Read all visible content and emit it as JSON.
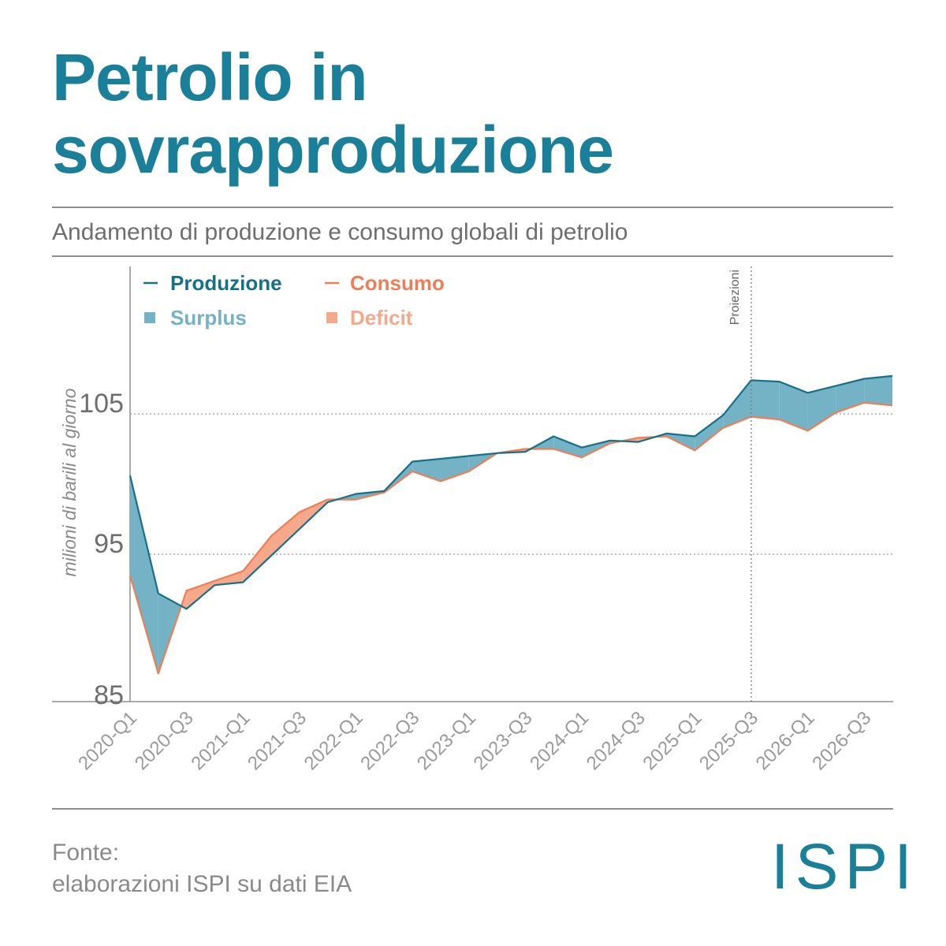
{
  "title_line1": "Petrolio in",
  "title_line2": "sovrapproduzione",
  "subtitle": "Andamento di produzione e consumo globali di petrolio",
  "source_line1": "Fonte:",
  "source_line2": "elaborazioni ISPI su dati EIA",
  "logo": "ISPI",
  "colors": {
    "title": "#1a7f99",
    "production": "#16708a",
    "consumption": "#ee7e55",
    "surplus": "#74b2c6",
    "deficit": "#f6a98a"
  },
  "chart_data": {
    "type": "area",
    "title": "",
    "ylabel": "milioni di barili al giorno",
    "ylim": [
      85,
      106.5
    ],
    "yticks": [
      "85",
      "95",
      "105"
    ],
    "x": [
      "2020-Q1",
      "2020-Q2",
      "2020-Q3",
      "2020-Q4",
      "2021-Q1",
      "2021-Q2",
      "2021-Q3",
      "2021-Q4",
      "2022-Q1",
      "2022-Q2",
      "2022-Q3",
      "2022-Q4",
      "2023-Q1",
      "2023-Q2",
      "2023-Q3",
      "2023-Q4",
      "2024-Q1",
      "2024-Q2",
      "2024-Q3",
      "2024-Q4",
      "2025-Q1",
      "2025-Q2",
      "2025-Q3",
      "2025-Q4",
      "2026-Q1",
      "2026-Q2",
      "2026-Q3",
      "2026-Q4"
    ],
    "tick_labels": [
      "2020-Q1",
      "2020-Q3",
      "2021-Q1",
      "2021-Q3",
      "2022-Q1",
      "2022-Q3",
      "2023-Q1",
      "2023-Q3",
      "2024-Q1",
      "2024-Q3",
      "2025-Q1",
      "2025-Q3",
      "2026-Q1",
      "2026-Q3"
    ],
    "projection_start": "2025-Q3",
    "projection_label": "Proiezioni",
    "grid": true,
    "legend_position": "top-left",
    "series": [
      {
        "name": "Produzione",
        "values": [
          100.6,
          92.2,
          91.1,
          92.8,
          93.0,
          94.9,
          96.8,
          98.7,
          99.3,
          99.5,
          101.6,
          101.8,
          102.0,
          102.2,
          102.3,
          103.4,
          102.6,
          103.1,
          103.0,
          103.6,
          103.4,
          104.9,
          107.4,
          107.3,
          106.5,
          107.0,
          107.5,
          107.7
        ]
      },
      {
        "name": "Consumo",
        "values": [
          93.5,
          86.5,
          92.4,
          93.1,
          93.8,
          96.3,
          98.0,
          98.9,
          98.9,
          99.4,
          100.9,
          100.2,
          100.9,
          102.2,
          102.5,
          102.5,
          101.9,
          102.9,
          103.3,
          103.4,
          102.4,
          104.0,
          104.8,
          104.6,
          103.8,
          105.1,
          105.8,
          105.6
        ]
      }
    ],
    "legend": {
      "production": "Produzione",
      "consumption": "Consumo",
      "surplus": "Surplus",
      "deficit": "Deficit"
    }
  }
}
